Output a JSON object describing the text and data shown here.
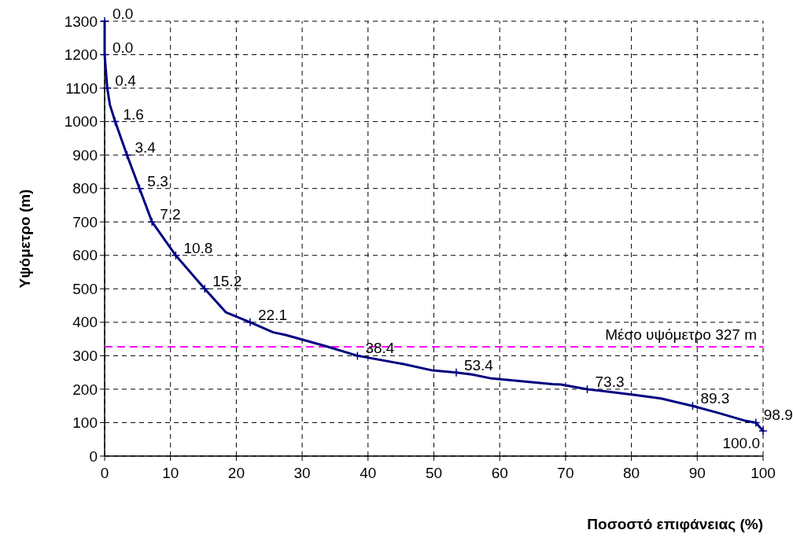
{
  "chart_data": {
    "type": "line",
    "xlabel": "Ποσοστό επιφάνειας (%)",
    "ylabel": "Υψόμετρο (m)",
    "xlim": [
      0,
      100
    ],
    "xticks": [
      0,
      10,
      20,
      30,
      40,
      50,
      60,
      70,
      80,
      90,
      100
    ],
    "ylim": [
      0,
      1300
    ],
    "yticks": [
      0,
      100,
      200,
      300,
      400,
      500,
      600,
      700,
      800,
      900,
      1000,
      1100,
      1200,
      1300
    ],
    "grid": true,
    "series": [
      {
        "color": "#000080",
        "marker": "none",
        "line_style": "solid",
        "x": [
          0,
          0,
          0.4,
          0.8,
          1.6,
          3.4,
          5.3,
          7.2,
          10.8,
          15.2,
          18.4,
          22.1,
          25.6,
          27.5,
          33.5,
          38.4,
          45.4,
          49.8,
          53.4,
          55.8,
          58.5,
          68,
          69.3,
          73.3,
          80.5,
          84.5,
          89.3,
          93.2,
          97.2,
          98.9,
          100
        ],
        "values": [
          1300,
          1200,
          1100,
          1050,
          1000,
          900,
          800,
          700,
          600,
          500,
          430,
          400,
          370,
          362,
          329,
          300,
          275,
          256,
          250,
          244,
          233,
          215,
          214,
          200,
          183,
          172,
          150,
          129,
          106,
          100,
          75
        ]
      },
      {
        "type": "scatter",
        "color": "#000080",
        "marker": "cross",
        "x": [
          0,
          0,
          0.4,
          1.6,
          3.4,
          5.3,
          7.2,
          10.8,
          15.2,
          22.1,
          38.4,
          53.4,
          73.3,
          89.3,
          98.9,
          100
        ],
        "values": [
          1300,
          1200,
          1100,
          1000,
          900,
          800,
          700,
          600,
          500,
          400,
          300,
          250,
          200,
          150,
          100,
          75
        ]
      }
    ],
    "annotations": [
      {
        "text": "0.0",
        "x": 0,
        "y": 1300
      },
      {
        "text": "0.0",
        "x": 0,
        "y": 1200
      },
      {
        "text": "0.4",
        "x": 0.4,
        "y": 1100
      },
      {
        "text": "1.6",
        "x": 1.6,
        "y": 1000
      },
      {
        "text": "3.4",
        "x": 3.4,
        "y": 900
      },
      {
        "text": "5.3",
        "x": 5.3,
        "y": 800
      },
      {
        "text": "7.2",
        "x": 7.2,
        "y": 700
      },
      {
        "text": "10.8",
        "x": 10.8,
        "y": 600
      },
      {
        "text": "15.2",
        "x": 15.2,
        "y": 500
      },
      {
        "text": "22.1",
        "x": 22.1,
        "y": 400
      },
      {
        "text": "38.4",
        "x": 38.4,
        "y": 300
      },
      {
        "text": "53.4",
        "x": 53.4,
        "y": 250
      },
      {
        "text": "73.3",
        "x": 73.3,
        "y": 200
      },
      {
        "text": "89.3",
        "x": 89.3,
        "y": 150
      },
      {
        "text": "98.9",
        "x": 98.9,
        "y": 100
      },
      {
        "text": "100.0",
        "x": 100,
        "y": 75
      }
    ],
    "ref_lines": [
      {
        "axis": "y",
        "value": 327,
        "label": "Μέσο υψόμετρο 327 m",
        "color": "#ff00ff",
        "line_style": "dashed"
      }
    ]
  }
}
